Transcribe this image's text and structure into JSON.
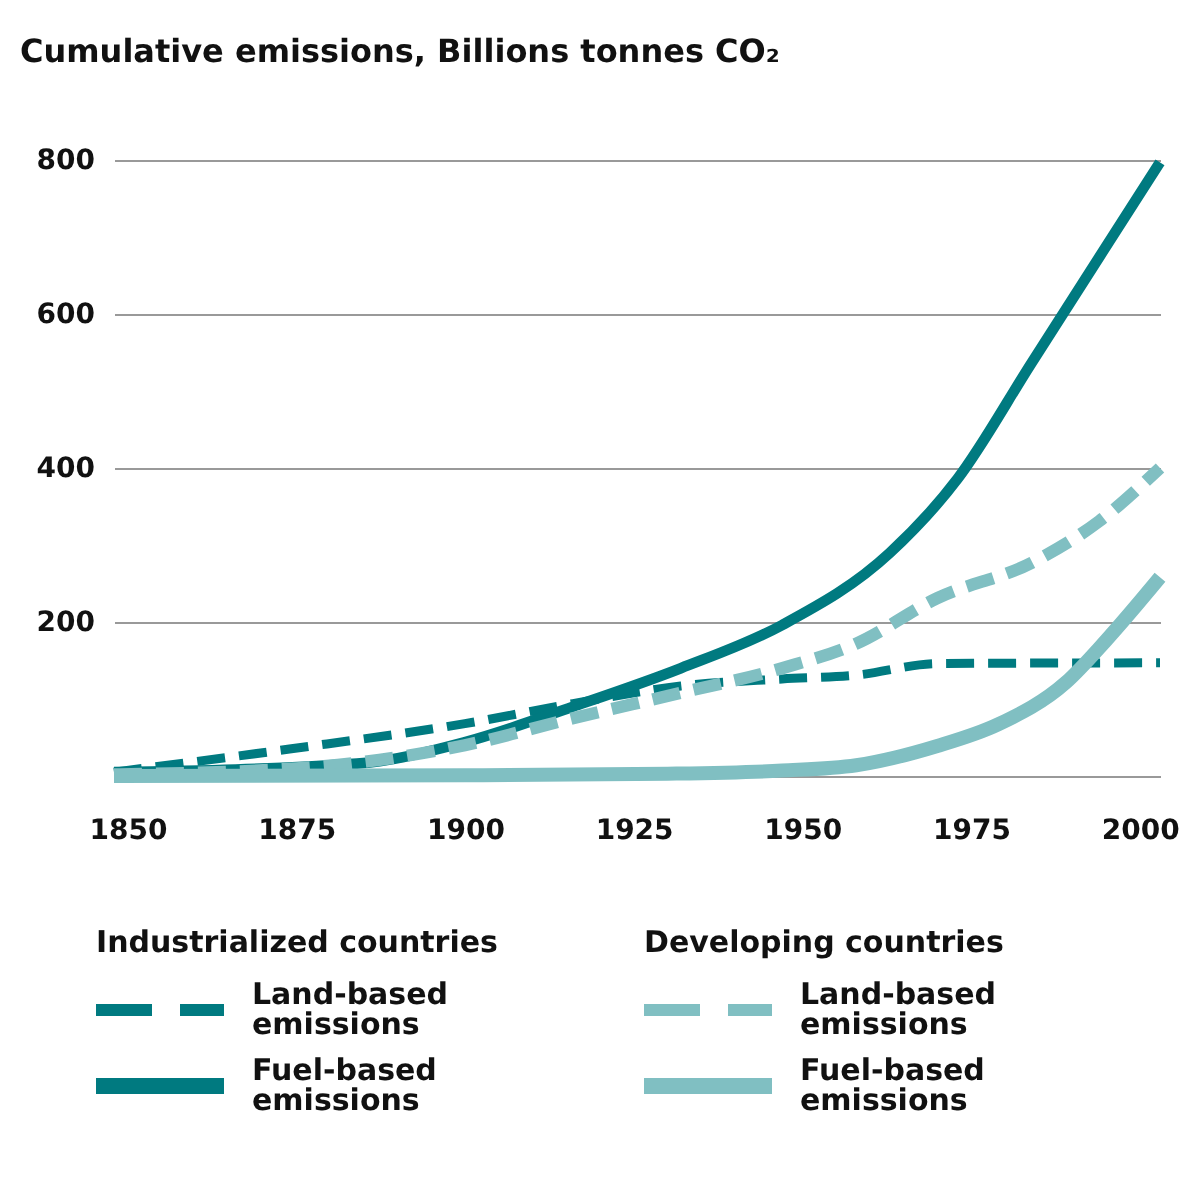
{
  "chart_data": {
    "type": "line",
    "title": "Cumulative emissions, Billions tonnes CO₂",
    "legend_title": [
      "Industrialized countries",
      "Developing countries"
    ],
    "xlim": [
      1848,
      2003
    ],
    "xticks": [
      1850,
      1875,
      1900,
      1925,
      1950,
      1975,
      2000
    ],
    "ylim": [
      0,
      800
    ],
    "yticks": [
      {
        "value": 0,
        "label": null
      },
      200,
      400,
      600,
      800
    ],
    "grid": "y",
    "legend": "bottom",
    "marker": "none",
    "series": [
      {
        "name": "Land-based emissions",
        "color": "#007a80",
        "line_style": "dashed",
        "x": [
          1848,
          1874,
          1900,
          1916,
          1932,
          1947,
          1958,
          1970,
          2003
        ],
        "values": [
          5,
          35,
          68,
          94,
          117,
          126,
          131,
          146,
          147
        ]
      },
      {
        "name": "Fuel-based emissions",
        "color": "#007a80",
        "line_style": "solid",
        "x": [
          1848,
          1884,
          1900,
          1916,
          1932,
          1947,
          1963,
          1973,
          1984,
          1994,
          2003
        ],
        "values": [
          5,
          16,
          44,
          90,
          140,
          196,
          290,
          386,
          537,
          674,
          797
        ]
      },
      {
        "name": "Land-based emissions",
        "color": "#80bfc2",
        "line_style": "dashed",
        "x": [
          1848,
          1875,
          1900,
          1916,
          1932,
          1947,
          1958,
          1970,
          1984,
          1994,
          2003
        ],
        "values": [
          2,
          10,
          40,
          75,
          108,
          140,
          172,
          231,
          277,
          331,
          400
        ]
      },
      {
        "name": "Fuel-based emissions",
        "color": "#80bfc2",
        "line_style": "solid",
        "x": [
          1848,
          1900,
          1930,
          1947,
          1958,
          1970,
          1979,
          1989,
          1995,
          2003
        ],
        "values": [
          0,
          1,
          3,
          7,
          14,
          39,
          67,
          121,
          176,
          258
        ]
      }
    ]
  }
}
